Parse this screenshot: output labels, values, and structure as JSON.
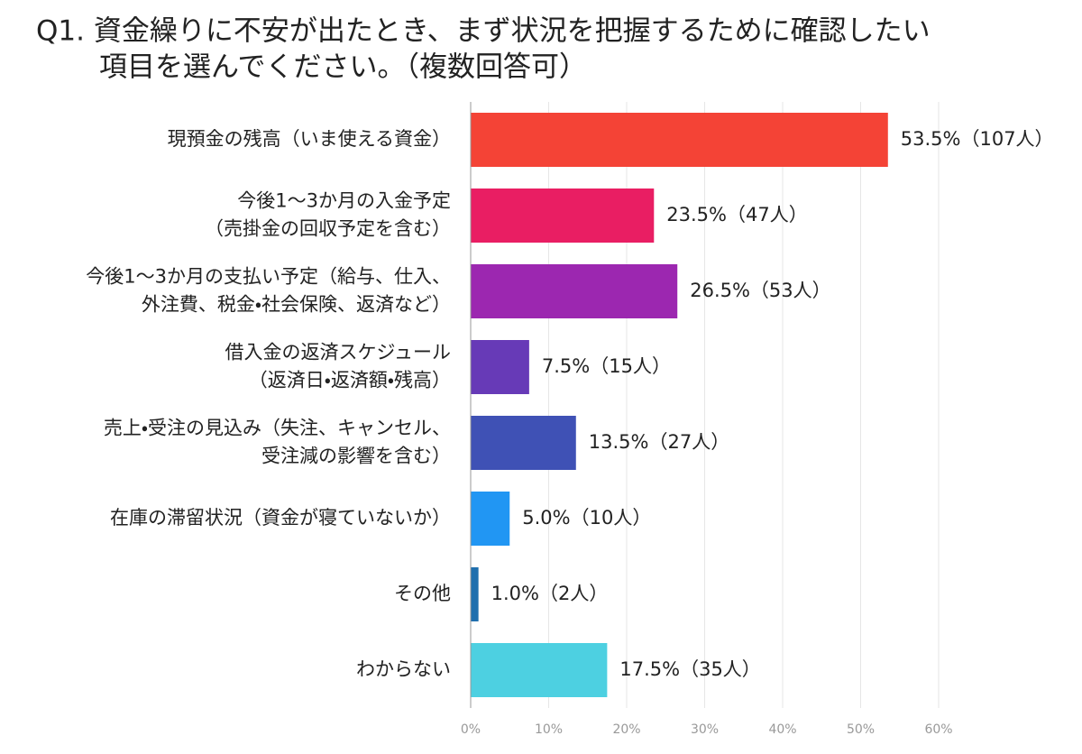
{
  "chart_data": {
    "type": "bar",
    "orientation": "horizontal",
    "title": [
      "Q1. 資金繰りに不安が出たとき、まず状況を把握するために確認したい",
      "項目を選んでください。（複数回答可）"
    ],
    "categories": [
      [
        "現預金の残高（いま使える資金）"
      ],
      [
        "今後1～3か月の入金予定",
        "（売掛金の回収予定を含む）"
      ],
      [
        "今後1～3か月の支払い予定（給与、仕入、",
        "外注費、税金・社会保険、返済など）"
      ],
      [
        "借入金の返済スケジュール",
        "（返済日・返済額・残高）"
      ],
      [
        "売上・受注の見込み（失注、キャンセル、",
        "受注減の影響を含む）"
      ],
      [
        "在庫の滞留状況（資金が寝ていないか）"
      ],
      [
        "その他"
      ],
      [
        "わからない"
      ]
    ],
    "values": [
      53.5,
      23.5,
      26.5,
      7.5,
      13.5,
      5.0,
      1.0,
      17.5
    ],
    "value_labels": [
      "53.5%（107人）",
      "23.5%（47人）",
      "26.5%（53人）",
      "7.5%（15人）",
      "13.5%（27人）",
      "5.0%（10人）",
      "1.0%（2人）",
      "17.5%（35人）"
    ],
    "colors": [
      "#f44336",
      "#e91e63",
      "#9c27b0",
      "#673ab7",
      "#3f51b5",
      "#2196f3",
      "#1f6fae",
      "#4dd0e1"
    ],
    "xlim": [
      0,
      60
    ],
    "xticks": [
      {
        "value": 0,
        "label": "0%"
      },
      {
        "value": 10,
        "label": "10%"
      },
      {
        "value": 20,
        "label": "20%"
      },
      {
        "value": 30,
        "label": "30%"
      },
      {
        "value": 40,
        "label": "40%"
      },
      {
        "value": 50,
        "label": "50%"
      },
      {
        "value": 60,
        "label": "60%"
      }
    ],
    "grid": true
  }
}
